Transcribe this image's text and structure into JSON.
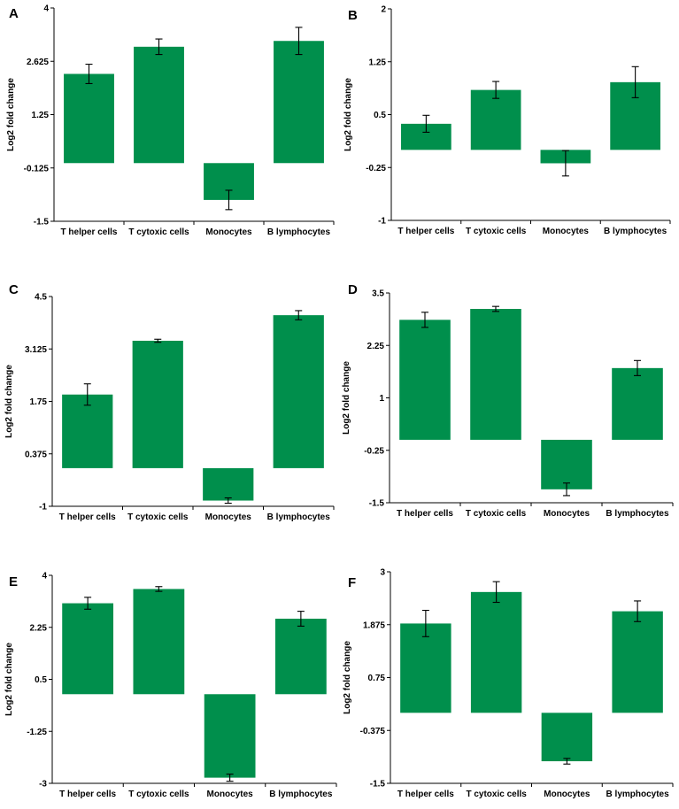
{
  "figure": {
    "background": "#ffffff",
    "bar_color": "#008f4c",
    "error_color": "#000000"
  },
  "chart_data": [
    {
      "panel": "A",
      "type": "bar",
      "title": "",
      "xlabel": "",
      "ylabel": "Log2 fold change",
      "categories": [
        "T helper cells",
        "T cytoxic cells",
        "Monocytes",
        "B lymphocytes"
      ],
      "values": [
        2.3,
        3.0,
        -0.95,
        3.15
      ],
      "errors": [
        0.25,
        0.2,
        0.25,
        0.35
      ],
      "yticks": [
        "4",
        "2.625",
        "1.25",
        "-0.125",
        "-1.5"
      ],
      "ylim": [
        -1.5,
        4
      ],
      "bar_origin": 0
    },
    {
      "panel": "B",
      "type": "bar",
      "title": "",
      "xlabel": "",
      "ylabel": "Log2 fold change",
      "categories": [
        "T helper cells",
        "T cytoxic cells",
        "Monocytes",
        "B lymphocytes"
      ],
      "values": [
        0.37,
        0.85,
        -0.19,
        0.96
      ],
      "errors": [
        0.12,
        0.12,
        0.18,
        0.22
      ],
      "yticks": [
        "2",
        "1.25",
        "0.5",
        "-0.25",
        "-1"
      ],
      "ylim": [
        -1,
        2
      ],
      "bar_origin": 0
    },
    {
      "panel": "C",
      "type": "bar",
      "title": "",
      "xlabel": "",
      "ylabel": "Log2 fold change",
      "categories": [
        "T helper cells",
        "T cytoxic cells",
        "Monocytes",
        "B lymphocytes"
      ],
      "values": [
        1.93,
        3.34,
        -0.85,
        4.01
      ],
      "errors": [
        0.28,
        0.04,
        0.07,
        0.12
      ],
      "yticks": [
        "4.5",
        "3.125",
        "1.75",
        "0.375",
        "-1"
      ],
      "ylim": [
        -1,
        4.5
      ],
      "bar_origin": 0
    },
    {
      "panel": "D",
      "type": "bar",
      "title": "",
      "xlabel": "",
      "ylabel": "Log2 fold change",
      "categories": [
        "T helper cells",
        "T cytoxic cells",
        "Monocytes",
        "B lymphocytes"
      ],
      "values": [
        2.86,
        3.12,
        -1.18,
        1.71
      ],
      "errors": [
        0.18,
        0.06,
        0.15,
        0.18
      ],
      "yticks": [
        "3.5",
        "2.25",
        "1",
        "-0.25",
        "-1.5"
      ],
      "ylim": [
        -1.5,
        3.5
      ],
      "bar_origin": 0
    },
    {
      "panel": "E",
      "type": "bar",
      "title": "",
      "xlabel": "",
      "ylabel": "Log2 fold change",
      "categories": [
        "T helper cells",
        "T cytoxic cells",
        "Monocytes",
        "B lymphocytes"
      ],
      "values": [
        3.06,
        3.54,
        -2.81,
        2.54
      ],
      "errors": [
        0.2,
        0.08,
        0.12,
        0.25
      ],
      "yticks": [
        "4",
        "2.25",
        "0.5",
        "-1.25",
        "-3"
      ],
      "ylim": [
        -3,
        4
      ],
      "bar_origin": 0
    },
    {
      "panel": "F",
      "type": "bar",
      "title": "",
      "xlabel": "",
      "ylabel": "Log2 fold change",
      "categories": [
        "T helper cells",
        "T cytoxic cells",
        "Monocytes",
        "B lymphocytes"
      ],
      "values": [
        1.9,
        2.57,
        -1.03,
        2.16
      ],
      "errors": [
        0.28,
        0.22,
        0.06,
        0.22
      ],
      "yticks": [
        "3",
        "1.875",
        "0.75",
        "-0.375",
        "-1.5"
      ],
      "ylim": [
        -1.5,
        3
      ],
      "bar_origin": 0
    }
  ]
}
